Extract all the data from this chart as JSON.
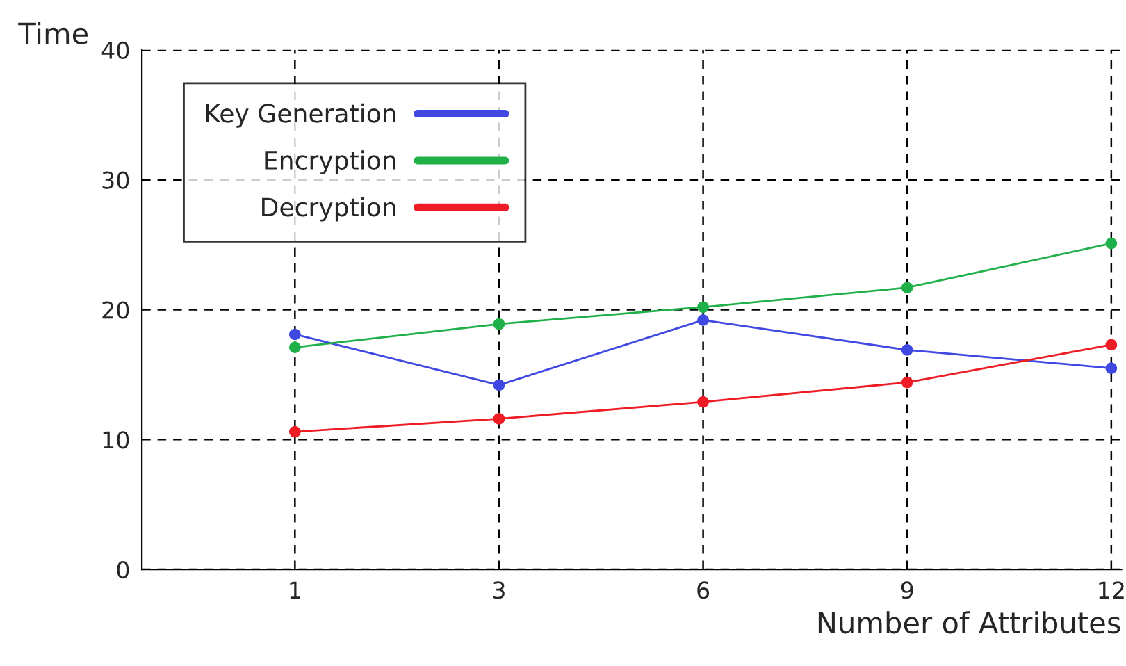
{
  "chart_data": {
    "type": "line",
    "xlabel": "Number of Attributes",
    "ylabel": "Time",
    "categories": [
      "1",
      "3",
      "6",
      "9",
      "12"
    ],
    "series": [
      {
        "name": "Key Generation",
        "color": "#3f48e0",
        "values": [
          18.1,
          14.2,
          19.2,
          16.9,
          15.5
        ]
      },
      {
        "name": "Encryption",
        "color": "#1fb04a",
        "values": [
          17.1,
          18.9,
          20.2,
          21.7,
          25.1
        ]
      },
      {
        "name": "Decryption",
        "color": "#ee1c25",
        "values": [
          10.6,
          11.6,
          12.9,
          14.4,
          17.3
        ]
      }
    ],
    "ylim": [
      0,
      40
    ],
    "yticks": [
      0,
      10,
      20,
      30,
      40
    ],
    "grid": true,
    "legend": "top left",
    "marker": "circle",
    "line_style": "solid"
  }
}
